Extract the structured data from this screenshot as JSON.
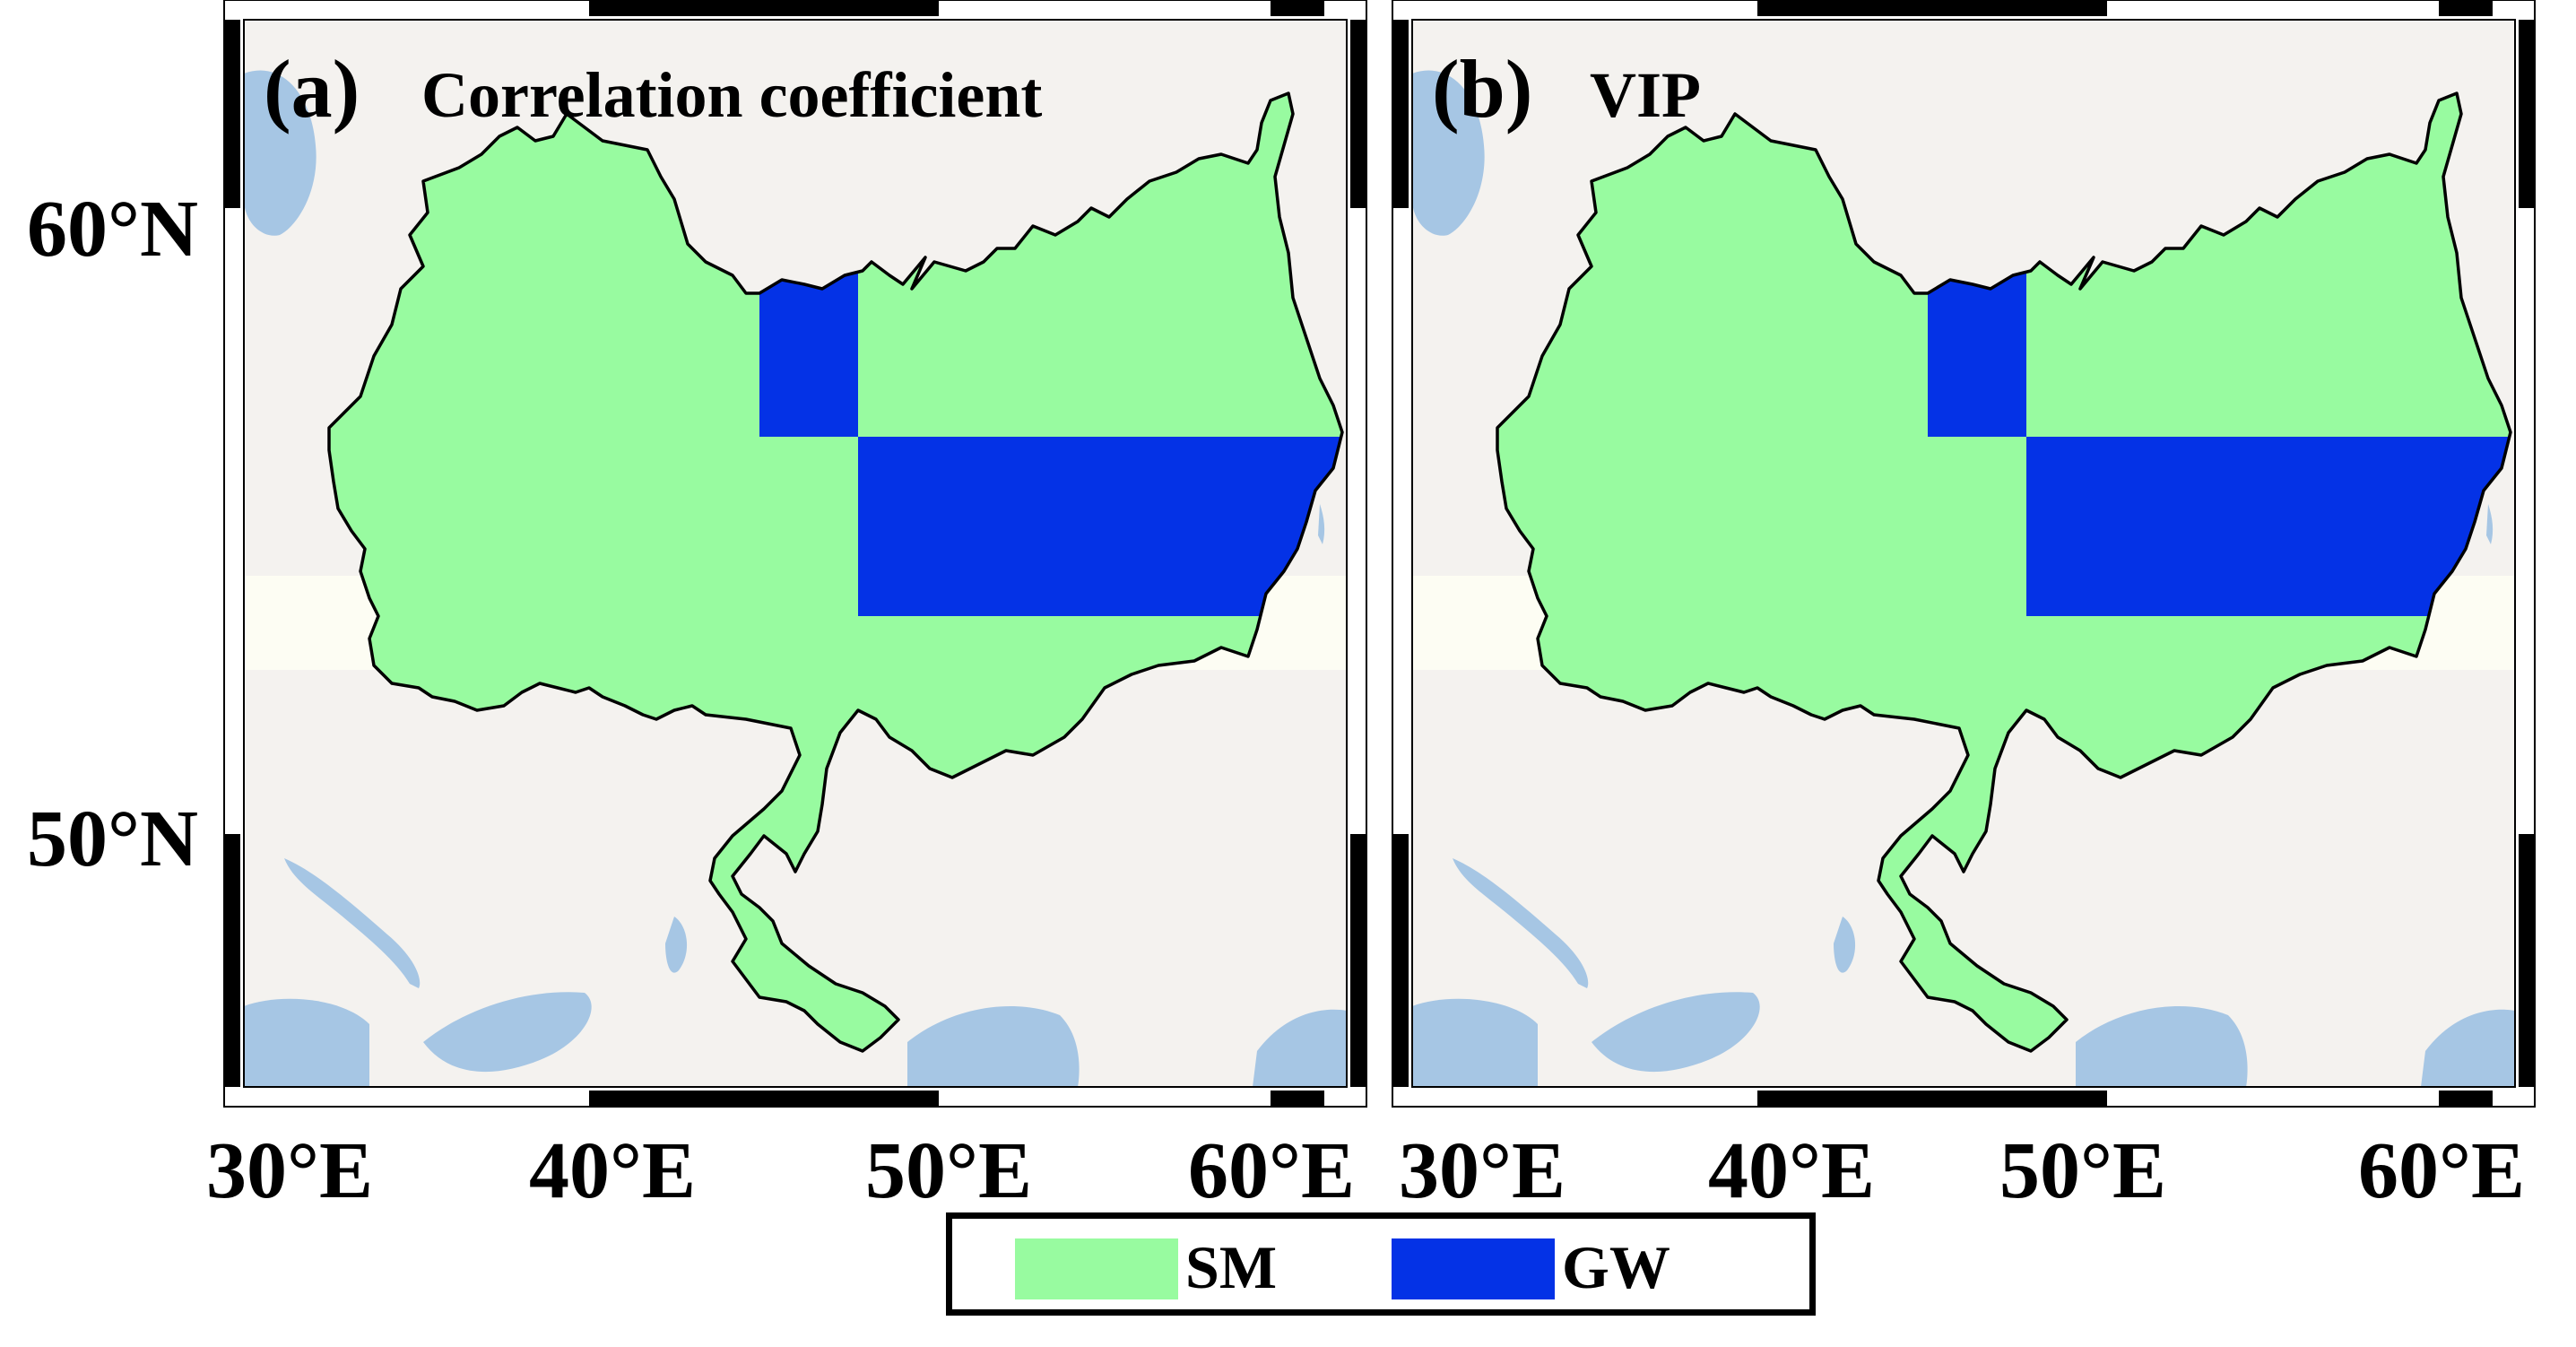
{
  "colors": {
    "land": "#f4f2ef",
    "water": "#a6c6e4",
    "band": "#fdfdf3",
    "sm": "#98fba0",
    "gw": "#0432e6",
    "border": "#000000"
  },
  "panels": [
    {
      "id": "a",
      "label": "(a)",
      "title": "Correlation coefficient"
    },
    {
      "id": "b",
      "label": "(b)",
      "title": "VIP"
    }
  ],
  "axes": {
    "lat_ticks": [
      "60°N",
      "50°N"
    ],
    "lon_ticks": [
      "30°E",
      "40°E",
      "50°E",
      "60°E"
    ]
  },
  "legend": {
    "items": [
      {
        "key": "SM",
        "label": "SM",
        "color": "#98fba0"
      },
      {
        "key": "GW",
        "label": "GW",
        "color": "#0432e6"
      }
    ]
  },
  "map_data": {
    "region": "basin",
    "categories": [
      "SM",
      "GW"
    ],
    "gw_cells": [
      {
        "lon": [
          44.2,
          47.2
        ],
        "lat": [
          56.6,
          59.8
        ]
      },
      {
        "lon": [
          47.2,
          60.3
        ],
        "lat": [
          53.7,
          56.6
        ]
      }
    ]
  }
}
